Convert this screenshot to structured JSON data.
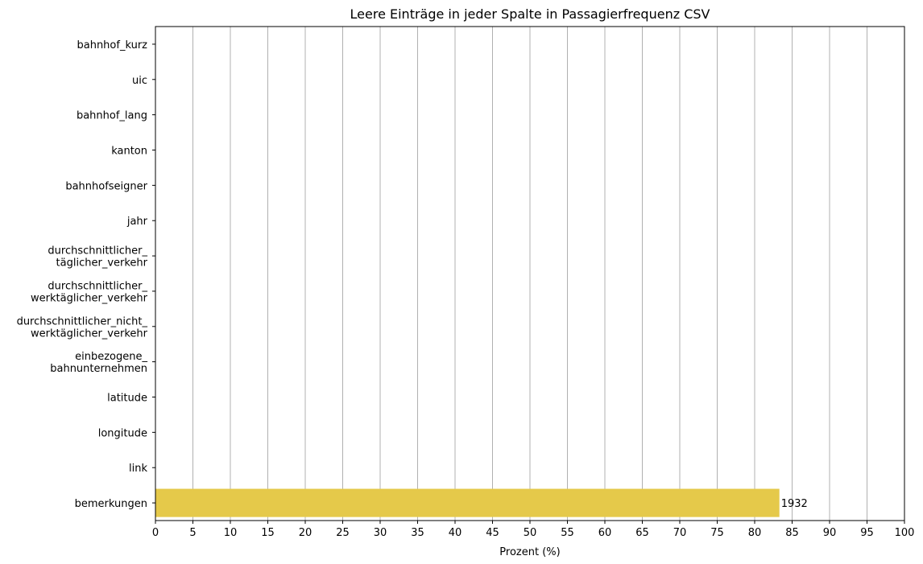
{
  "chart_data": {
    "type": "bar",
    "orientation": "horizontal",
    "title": "Leere Einträge in jeder Spalte in Passagierfrequenz CSV",
    "xlabel": "Prozent (%)",
    "ylabel": "",
    "xlim": [
      0,
      100
    ],
    "xticks": [
      0,
      5,
      10,
      15,
      20,
      25,
      30,
      35,
      40,
      45,
      50,
      55,
      60,
      65,
      70,
      75,
      80,
      85,
      90,
      95,
      100
    ],
    "grid": "vertical",
    "bar_color": "#e5c94a",
    "categories": [
      [
        "bahnhof_kurz"
      ],
      [
        "uic"
      ],
      [
        "bahnhof_lang"
      ],
      [
        "kanton"
      ],
      [
        "bahnhofseigner"
      ],
      [
        "jahr"
      ],
      [
        "durchschnittlicher_",
        "täglicher_verkehr"
      ],
      [
        "durchschnittlicher_",
        "werktäglicher_verkehr"
      ],
      [
        "durchschnittlicher_nicht_",
        "werktäglicher_verkehr"
      ],
      [
        "einbezogene_",
        "bahnunternehmen"
      ],
      [
        "latitude"
      ],
      [
        "longitude"
      ],
      [
        "link"
      ],
      [
        "bemerkungen"
      ]
    ],
    "values": [
      0,
      0,
      0,
      0,
      0,
      0,
      0,
      0,
      0,
      0,
      0,
      0,
      0,
      83.3
    ],
    "data_labels": [
      "",
      "",
      "",
      "",
      "",
      "",
      "",
      "",
      "",
      "",
      "",
      "",
      "",
      "1932"
    ]
  }
}
